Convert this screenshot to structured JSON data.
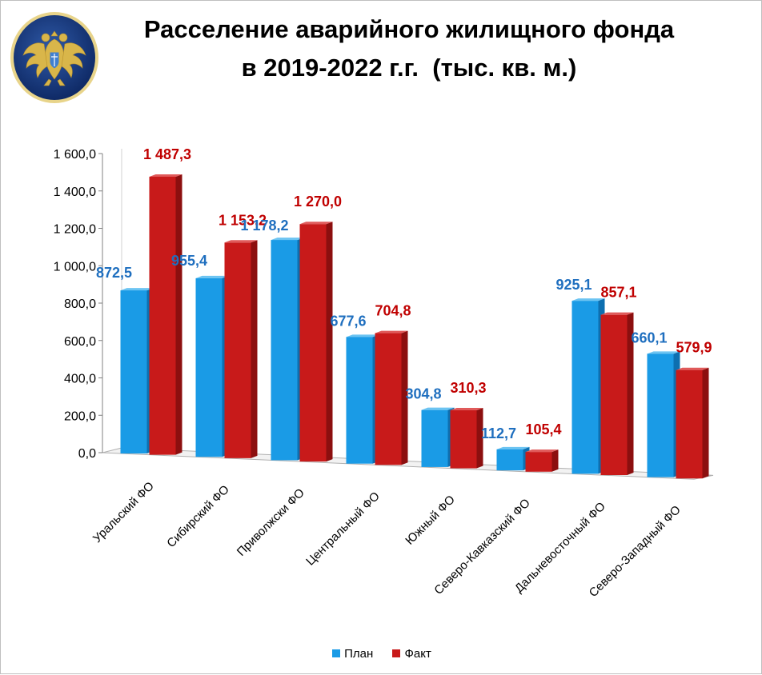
{
  "title": {
    "line1": "Расселение аварийного жилищного фонда",
    "line2": "в 2019-2022 г.г.  (тыс. кв. м.)"
  },
  "logo": {
    "icon": "double-headed-eagle-emblem-icon"
  },
  "colors": {
    "plan": "#1a9be6",
    "plan_side": "#0d6fb0",
    "plan_top": "#6cc4f2",
    "fact": "#c81a1a",
    "fact_side": "#8c0f0f",
    "fact_top": "#e05a5a",
    "plan_label": "#1f6fbf",
    "fact_label": "#c00000"
  },
  "chart_data": {
    "type": "bar",
    "title": "Расселение аварийного жилищного фонда в 2019-2022 г.г.  (тыс. кв. м.)",
    "xlabel": "",
    "ylabel": "",
    "ylim": [
      0,
      1600
    ],
    "grid": false,
    "legend_position": "bottom",
    "y_ticks": [
      0,
      200,
      400,
      600,
      800,
      1000,
      1200,
      1400,
      1600
    ],
    "y_tick_labels": [
      "0,0",
      "200,0",
      "400,0",
      "600,0",
      "800,0",
      "1 000,0",
      "1 200,0",
      "1 400,0",
      "1 600,0"
    ],
    "categories": [
      "Уральский ФО",
      "Сибирский ФО",
      "Приволжски ФО",
      "Центральный ФО",
      "Южный ФО",
      "Северо-Кавказский ФО",
      "Дальневосточный ФО",
      "Северо-Западный ФО"
    ],
    "series": [
      {
        "name": "План",
        "values": [
          872.5,
          955.4,
          1178.2,
          677.6,
          304.8,
          112.7,
          925.1,
          660.1
        ],
        "labels": [
          "872,5",
          "955,4",
          "1 178,2",
          "677,6",
          "304,8",
          "112,7",
          "925,1",
          "660,1"
        ]
      },
      {
        "name": "Факт",
        "values": [
          1487.3,
          1153.2,
          1270.0,
          704.8,
          310.3,
          105.4,
          857.1,
          579.9
        ],
        "labels": [
          "1 487,3",
          "1 153,2",
          "1 270,0",
          "704,8",
          "310,3",
          "105,4",
          "857,1",
          "579,9"
        ]
      }
    ]
  }
}
